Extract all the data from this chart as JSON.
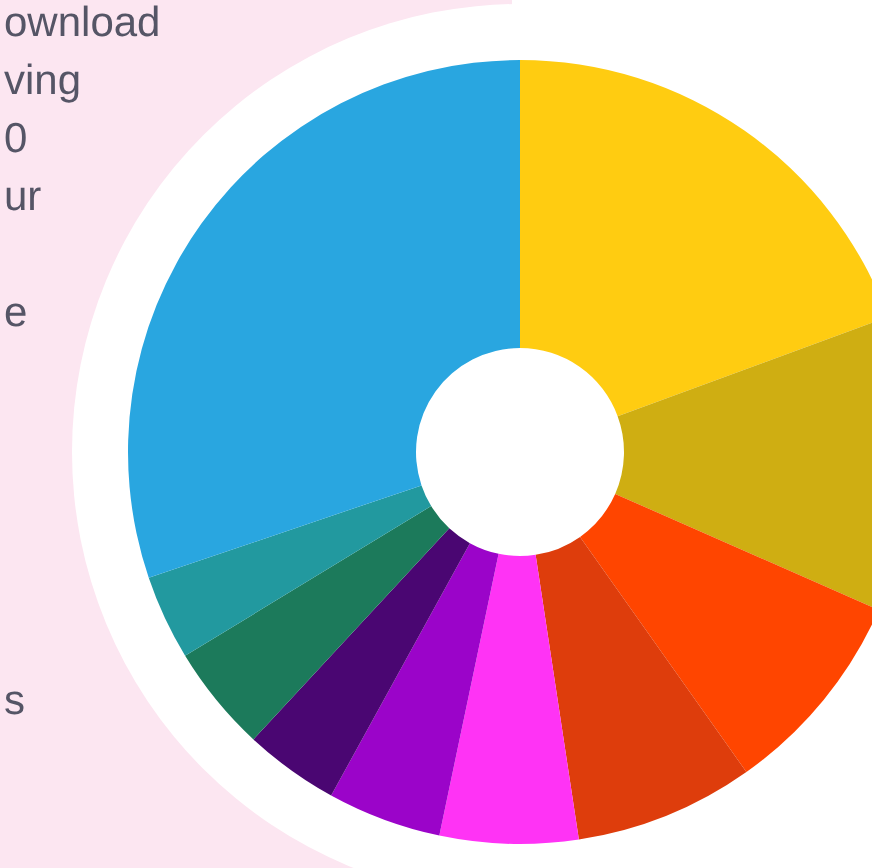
{
  "chart_data": {
    "type": "donut",
    "categories": [
      null,
      null,
      null,
      null,
      null,
      null,
      null,
      null,
      null,
      null
    ],
    "values": [
      19.4,
      12.2,
      8.6,
      7.4,
      5.7,
      4.7,
      3.9,
      4.4,
      3.5,
      30.2
    ],
    "colors": [
      "#ffcc11",
      "#cfae12",
      "#ff4500",
      "#de3d0c",
      "#ff33f5",
      "#9b04c9",
      "#4a0672",
      "#1c7a5b",
      "#22999f",
      "#29a6e0"
    ],
    "annotations": [
      "ownload",
      "ving",
      "0",
      "ur",
      "e",
      "s"
    ]
  }
}
